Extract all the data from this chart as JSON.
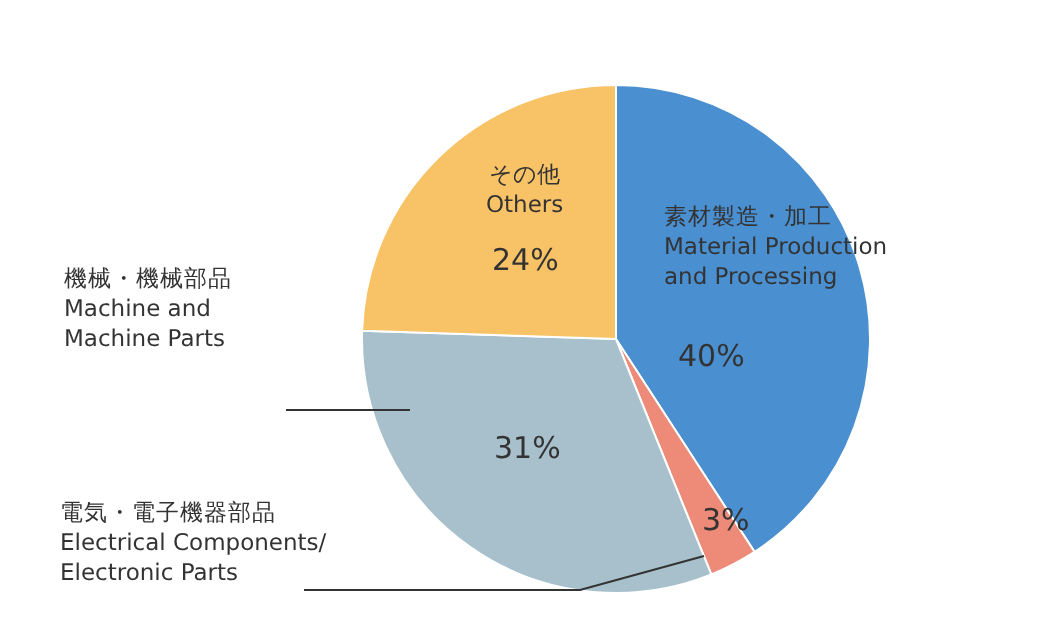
{
  "chart_data": {
    "type": "pie",
    "categories": [
      "素材製造・加工\nMaterial Production\nand Processing",
      "電気・電子機器部品\nElectrical Components/\nElectronic Parts",
      "機械・機械部品\nMachine and\nMachine Parts",
      "その他\nOthers"
    ],
    "values": [
      40,
      3,
      31,
      24
    ],
    "value_labels": [
      "40%",
      "3%",
      "31%",
      "24%"
    ],
    "colors": [
      "#4a8fcf",
      "#ee8a78",
      "#a8c0cc",
      "#f8c266"
    ]
  }
}
